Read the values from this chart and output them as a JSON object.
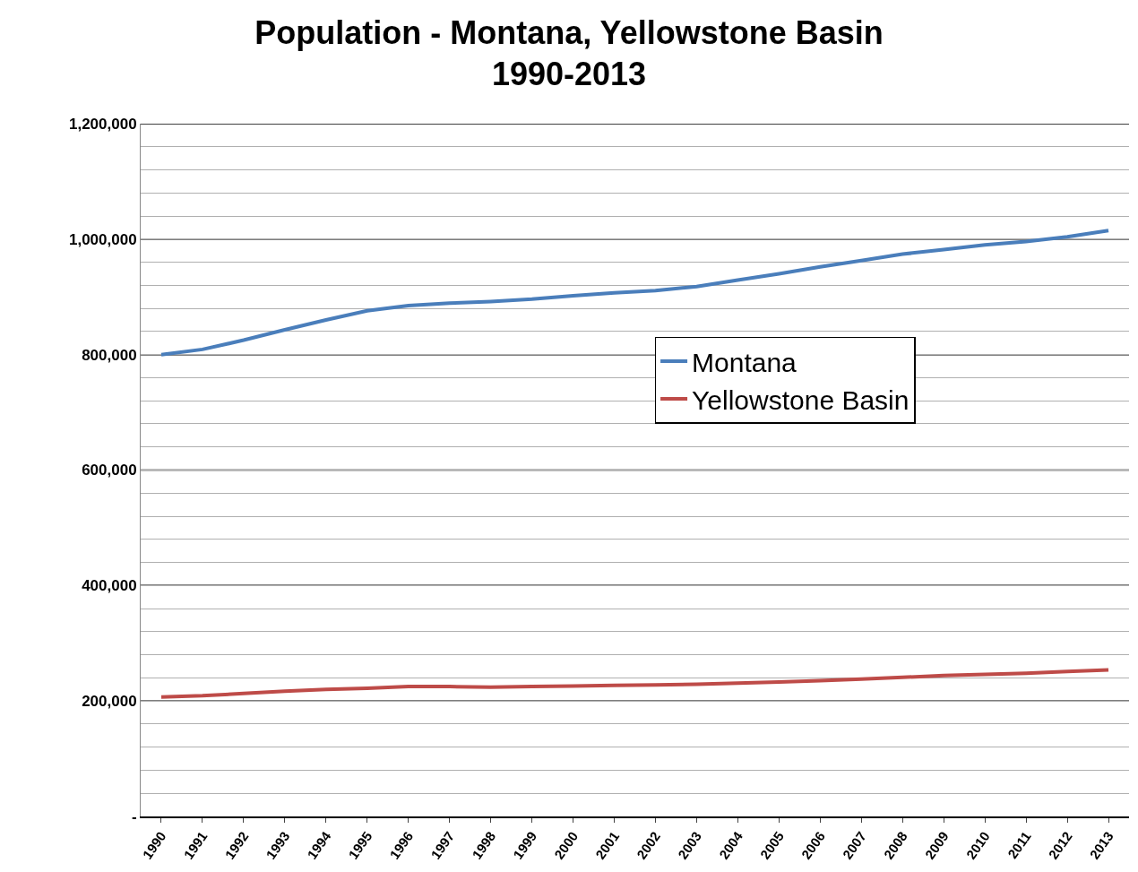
{
  "chart_data": {
    "type": "line",
    "title": "Population - Montana, Yellowstone Basin\n1990-2013",
    "categories": [
      "1990",
      "1991",
      "1992",
      "1993",
      "1994",
      "1995",
      "1996",
      "1997",
      "1998",
      "1999",
      "2000",
      "2001",
      "2002",
      "2003",
      "2004",
      "2005",
      "2006",
      "2007",
      "2008",
      "2009",
      "2010",
      "2011",
      "2012",
      "2013"
    ],
    "series": [
      {
        "name": "Montana",
        "color": "#4a7ebb",
        "values": [
          800000,
          809000,
          825000,
          843000,
          860000,
          876000,
          885000,
          889000,
          892000,
          896000,
          902000,
          907000,
          911000,
          918000,
          929000,
          940000,
          952000,
          963000,
          974000,
          982000,
          990000,
          996000,
          1004000,
          1015000
        ]
      },
      {
        "name": "Yellowstone Basin",
        "color": "#be4b48",
        "values": [
          207000,
          209000,
          213000,
          217000,
          220000,
          222000,
          225000,
          225000,
          224000,
          225000,
          226000,
          227000,
          228000,
          229000,
          231000,
          233000,
          235000,
          238000,
          241000,
          244000,
          246000,
          248000,
          251000,
          254000
        ]
      }
    ],
    "ylim": [
      0,
      1200000
    ],
    "yticks": [
      {
        "value": 0,
        "label": "-"
      },
      {
        "value": 40000,
        "label": null
      },
      {
        "value": 80000,
        "label": null
      },
      {
        "value": 120000,
        "label": null
      },
      {
        "value": 160000,
        "label": null
      },
      {
        "value": 200000,
        "label": "200,000"
      },
      {
        "value": 240000,
        "label": null
      },
      {
        "value": 280000,
        "label": null
      },
      {
        "value": 320000,
        "label": null
      },
      {
        "value": 360000,
        "label": null
      },
      {
        "value": 400000,
        "label": "400,000"
      },
      {
        "value": 440000,
        "label": null
      },
      {
        "value": 480000,
        "label": null
      },
      {
        "value": 520000,
        "label": null
      },
      {
        "value": 560000,
        "label": null
      },
      {
        "value": 600000,
        "label": "600,000"
      },
      {
        "value": 640000,
        "label": null
      },
      {
        "value": 680000,
        "label": null
      },
      {
        "value": 720000,
        "label": null
      },
      {
        "value": 760000,
        "label": null
      },
      {
        "value": 800000,
        "label": "800,000"
      },
      {
        "value": 840000,
        "label": null
      },
      {
        "value": 880000,
        "label": null
      },
      {
        "value": 920000,
        "label": null
      },
      {
        "value": 960000,
        "label": null
      },
      {
        "value": 1000000,
        "label": "1,000,000"
      },
      {
        "value": 1040000,
        "label": null
      },
      {
        "value": 1080000,
        "label": null
      },
      {
        "value": 1120000,
        "label": null
      },
      {
        "value": 1160000,
        "label": null
      },
      {
        "value": 1200000,
        "label": "1,200,000"
      }
    ],
    "grid": "y",
    "legend": "right",
    "marker": "none",
    "line_style": "solid"
  }
}
